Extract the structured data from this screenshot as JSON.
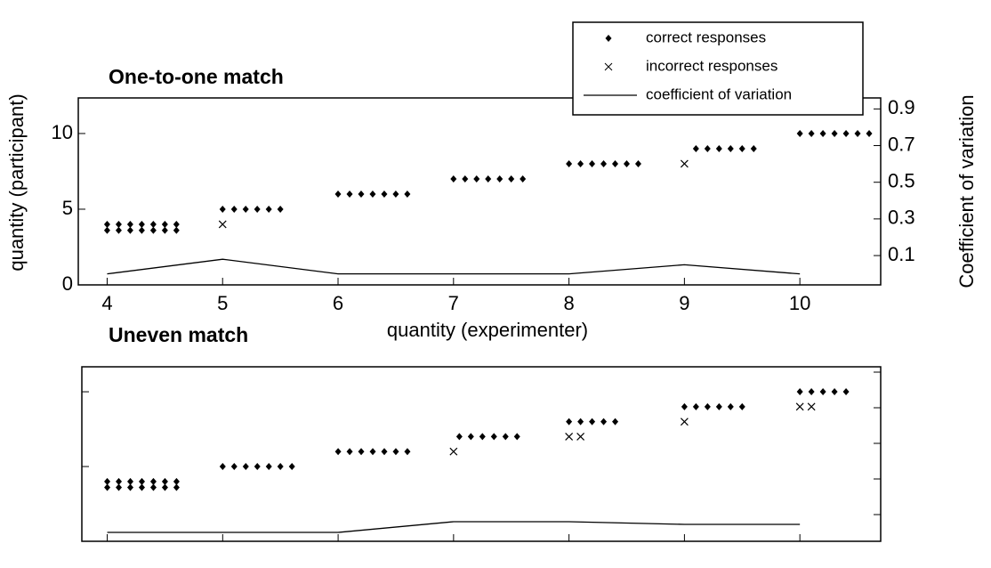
{
  "chart_data": [
    {
      "type": "scatter",
      "title": "One-to-one match",
      "x_label": "quantity (experimenter)",
      "y_label": "quantity (participant)",
      "y2_label": "Coefficient of variation",
      "xlim": [
        3.75,
        10.7
      ],
      "xticks": [
        4,
        5,
        6,
        7,
        8,
        9,
        10
      ],
      "ylim": [
        0,
        12.35
      ],
      "yticks": [
        0,
        5,
        10
      ],
      "y2lim": [
        -0.06,
        0.96
      ],
      "y2ticks": [
        0.1,
        0.3,
        0.5,
        0.7,
        0.9
      ],
      "tick_labels": true,
      "legend": "upper right",
      "series": [
        {
          "name": "correct responses",
          "marker": "diamond",
          "color": "#000000",
          "x": [
            4.0,
            4.1,
            4.2,
            4.3,
            4.4,
            4.5,
            4.6,
            4.0,
            4.1,
            4.2,
            4.3,
            4.4,
            4.5,
            4.6,
            5.0,
            5.1,
            5.2,
            5.3,
            5.4,
            5.5,
            6.0,
            6.1,
            6.2,
            6.3,
            6.4,
            6.5,
            6.6,
            7.0,
            7.1,
            7.2,
            7.3,
            7.4,
            7.5,
            7.6,
            8.0,
            8.1,
            8.2,
            8.3,
            8.4,
            8.5,
            8.6,
            9.1,
            9.2,
            9.3,
            9.4,
            9.5,
            9.6,
            10.0,
            10.1,
            10.2,
            10.3,
            10.4,
            10.5,
            10.6
          ],
          "values": [
            4,
            4,
            4,
            4,
            4,
            4,
            4,
            3.6,
            3.6,
            3.6,
            3.6,
            3.6,
            3.6,
            3.6,
            5,
            5,
            5,
            5,
            5,
            5,
            6,
            6,
            6,
            6,
            6,
            6,
            6,
            7,
            7,
            7,
            7,
            7,
            7,
            7,
            8,
            8,
            8,
            8,
            8,
            8,
            8,
            9,
            9,
            9,
            9,
            9,
            9,
            10,
            10,
            10,
            10,
            10,
            10,
            10
          ]
        },
        {
          "name": "incorrect responses",
          "marker": "x",
          "color": "#000000",
          "x": [
            5.0,
            9.0
          ],
          "values": [
            4,
            8
          ]
        },
        {
          "name": "coefficient of variation",
          "marker": "line",
          "axis": "y2",
          "color": "#000000",
          "x": [
            4,
            5,
            6,
            7,
            8,
            9,
            10
          ],
          "values": [
            0,
            0.08,
            0,
            0,
            0,
            0.05,
            0
          ]
        }
      ]
    },
    {
      "type": "scatter",
      "title": "Uneven match",
      "xlim": [
        3.78,
        10.7
      ],
      "xticks": [
        4,
        5,
        6,
        7,
        8,
        9,
        10
      ],
      "ylim": [
        0,
        11.67
      ],
      "yticks": [
        5,
        10
      ],
      "y2lim": [
        -0.05,
        0.93
      ],
      "y2ticks": [
        0.1,
        0.3,
        0.5,
        0.7,
        0.9
      ],
      "tick_labels": false,
      "series": [
        {
          "marker": "diamond",
          "color": "#000000",
          "x": [
            4.0,
            4.1,
            4.2,
            4.3,
            4.4,
            4.5,
            4.6,
            4.0,
            4.1,
            4.2,
            4.3,
            4.4,
            4.5,
            4.6,
            5.0,
            5.1,
            5.2,
            5.3,
            5.4,
            5.5,
            5.6,
            6.0,
            6.1,
            6.2,
            6.3,
            6.4,
            6.5,
            6.6,
            7.05,
            7.15,
            7.25,
            7.35,
            7.45,
            7.55,
            8.0,
            8.1,
            8.2,
            8.3,
            8.4,
            9.0,
            9.1,
            9.2,
            9.3,
            9.4,
            9.5,
            10.0,
            10.1,
            10.2,
            10.3,
            10.4
          ],
          "values": [
            4,
            4,
            4,
            4,
            4,
            4,
            4,
            3.6,
            3.6,
            3.6,
            3.6,
            3.6,
            3.6,
            3.6,
            5,
            5,
            5,
            5,
            5,
            5,
            5,
            6,
            6,
            6,
            6,
            6,
            6,
            6,
            7,
            7,
            7,
            7,
            7,
            7,
            8,
            8,
            8,
            8,
            8,
            9,
            9,
            9,
            9,
            9,
            9,
            10,
            10,
            10,
            10,
            10
          ]
        },
        {
          "marker": "x",
          "color": "#000000",
          "x": [
            7.0,
            8.0,
            8.1,
            9.0,
            10.0,
            10.1
          ],
          "values": [
            6,
            7,
            7,
            8,
            9,
            9
          ]
        },
        {
          "marker": "line",
          "axis": "y2",
          "color": "#000000",
          "x": [
            4,
            5,
            6,
            7,
            8,
            9,
            10
          ],
          "values": [
            0,
            0,
            0,
            0.06,
            0.06,
            0.045,
            0.045
          ]
        }
      ]
    }
  ]
}
